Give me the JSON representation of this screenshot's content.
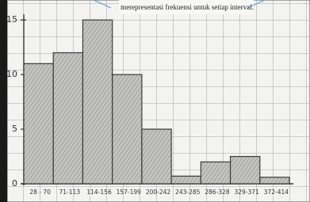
{
  "chart_data": {
    "type": "bar",
    "caption": "merepresentasi frekuensi untuk setiap interval.",
    "categories": [
      "28 - 70",
      "71-113",
      "114-156",
      "157-199",
      "200-242",
      "243-285",
      "286-328",
      "329-371",
      "372-414"
    ],
    "values": [
      11,
      12,
      15,
      10,
      5,
      0.7,
      2,
      2.5,
      0.6
    ],
    "color": "#b9b9b6",
    "ylim": [
      0,
      15.5
    ],
    "yticks": [
      0,
      5,
      10,
      15
    ]
  }
}
